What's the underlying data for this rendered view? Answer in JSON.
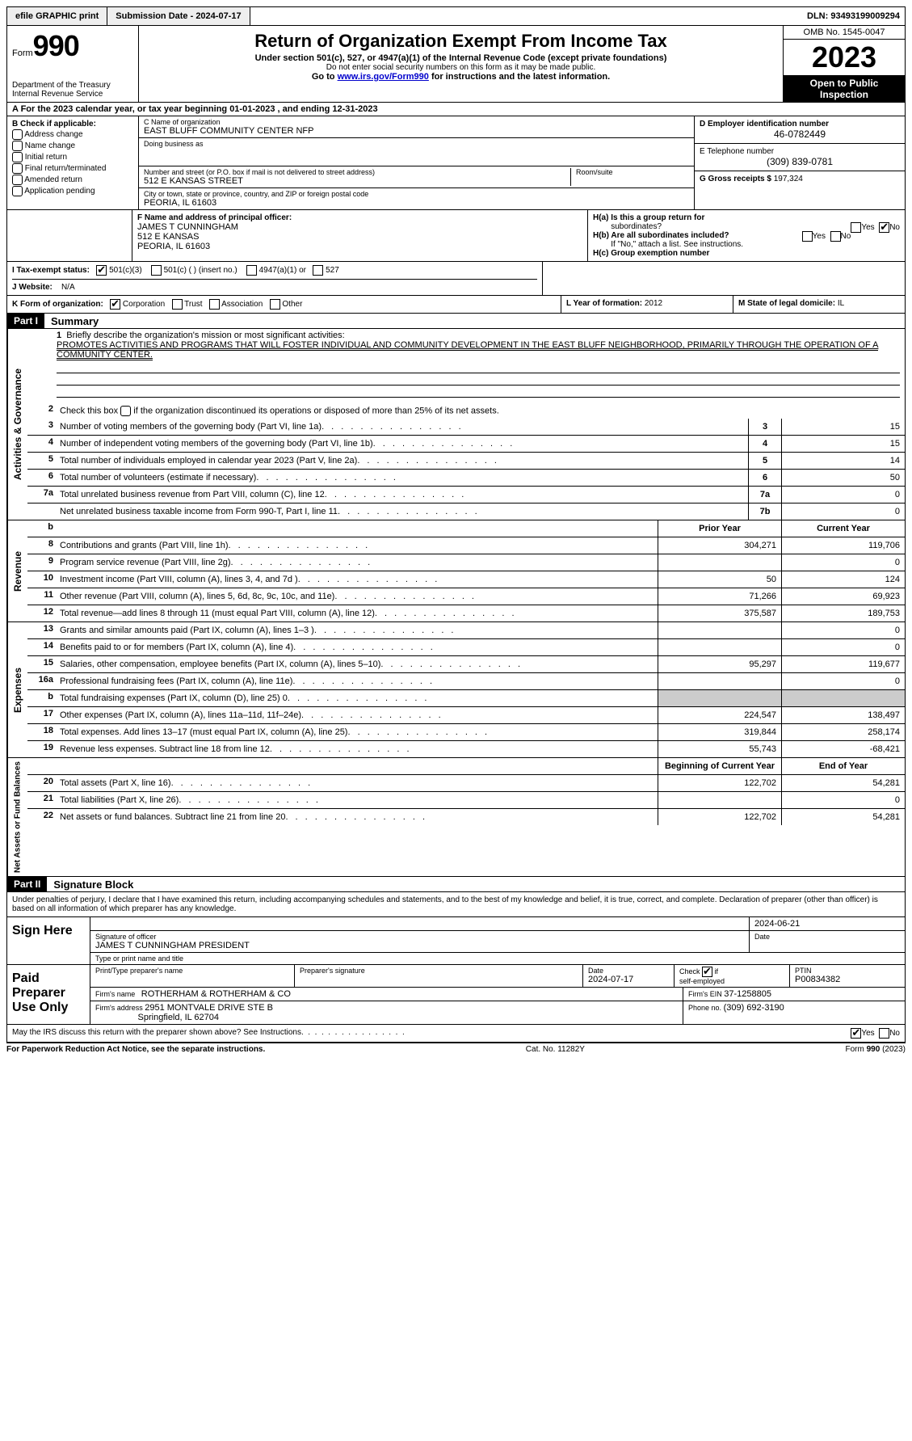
{
  "topbar": {
    "efile": "efile GRAPHIC print",
    "submission": "Submission Date - 2024-07-17",
    "dln": "DLN: 93493199009294"
  },
  "header": {
    "form_label": "Form",
    "form_number": "990",
    "dept": "Department of the Treasury",
    "irs": "Internal Revenue Service",
    "title": "Return of Organization Exempt From Income Tax",
    "sub": "Under section 501(c), 527, or 4947(a)(1) of the Internal Revenue Code (except private foundations)",
    "sub2": "Do not enter social security numbers on this form as it may be made public.",
    "goto_pre": "Go to ",
    "goto_link": "www.irs.gov/Form990",
    "goto_post": " for instructions and the latest information.",
    "omb": "OMB No. 1545-0047",
    "year": "2023",
    "open_public1": "Open to Public",
    "open_public2": "Inspection"
  },
  "row_a": "A  For the 2023 calendar year, or tax year beginning 01-01-2023    , and ending 12-31-2023",
  "section_b": {
    "label": "B Check if applicable:",
    "opts": [
      "Address change",
      "Name change",
      "Initial return",
      "Final return/terminated",
      "Amended return",
      "Application pending"
    ]
  },
  "section_c": {
    "name_label": "C Name of organization",
    "name": "EAST BLUFF COMMUNITY CENTER NFP",
    "dba_label": "Doing business as",
    "dba": "",
    "street_label": "Number and street (or P.O. box if mail is not delivered to street address)",
    "street": "512 E KANSAS STREET",
    "room_label": "Room/suite",
    "city_label": "City or town, state or province, country, and ZIP or foreign postal code",
    "city": "PEORIA, IL  61603"
  },
  "section_d": {
    "ein_label": "D Employer identification number",
    "ein": "46-0782449",
    "phone_label": "E Telephone number",
    "phone": "(309) 839-0781",
    "gross_label": "G Gross receipts $",
    "gross": "197,324"
  },
  "section_f": {
    "label": "F  Name and address of principal officer:",
    "name": "JAMES T CUNNINGHAM",
    "street": "512 E KANSAS",
    "city": "PEORIA, IL  61603"
  },
  "section_h": {
    "ha": "H(a)  Is this a group return for",
    "ha2": "subordinates?",
    "hb": "H(b)  Are all subordinates included?",
    "hb2": "If \"No,\" attach a list. See instructions.",
    "hc": "H(c)  Group exemption number ",
    "yes": "Yes",
    "no": "No"
  },
  "row_i": {
    "label": "I    Tax-exempt status:",
    "o1": "501(c)(3)",
    "o2": "501(c) (  ) (insert no.)",
    "o3": "4947(a)(1) or",
    "o4": "527"
  },
  "row_j": {
    "label": "J    Website: ",
    "val": "N/A"
  },
  "row_k": {
    "label": "K Form of organization:",
    "o1": "Corporation",
    "o2": "Trust",
    "o3": "Association",
    "o4": "Other"
  },
  "row_l": {
    "label": "L Year of formation:",
    "val": "2012"
  },
  "row_m": {
    "label": "M State of legal domicile:",
    "val": "IL"
  },
  "part1": {
    "num": "Part I",
    "title": "Summary"
  },
  "summary": {
    "q1_label": "Briefly describe the organization's mission or most significant activities:",
    "q1_val": "PROMOTES ACTIVITIES AND PROGRAMS THAT WILL FOSTER INDIVIDUAL AND COMMUNITY DEVELOPMENT IN THE EAST BLUFF NEIGHBORHOOD, PRIMARILY THROUGH THE OPERATION OF A COMMUNITY CENTER.",
    "q2": "Check this box         if the organization discontinued its operations or disposed of more than 25% of its net assets.",
    "rows_ag": [
      {
        "n": "3",
        "d": "Number of voting members of the governing body (Part VI, line 1a)",
        "box": "3",
        "v": "15"
      },
      {
        "n": "4",
        "d": "Number of independent voting members of the governing body (Part VI, line 1b)",
        "box": "4",
        "v": "15"
      },
      {
        "n": "5",
        "d": "Total number of individuals employed in calendar year 2023 (Part V, line 2a)",
        "box": "5",
        "v": "14"
      },
      {
        "n": "6",
        "d": "Total number of volunteers (estimate if necessary)",
        "box": "6",
        "v": "50"
      },
      {
        "n": "7a",
        "d": "Total unrelated business revenue from Part VIII, column (C), line 12",
        "box": "7a",
        "v": "0"
      },
      {
        "n": "",
        "d": "Net unrelated business taxable income from Form 990-T, Part I, line 11",
        "box": "7b",
        "v": "0"
      }
    ],
    "hdr_prior": "Prior Year",
    "hdr_current": "Current Year",
    "rows_rev": [
      {
        "n": "8",
        "d": "Contributions and grants (Part VIII, line 1h)",
        "p": "304,271",
        "c": "119,706"
      },
      {
        "n": "9",
        "d": "Program service revenue (Part VIII, line 2g)",
        "p": "",
        "c": "0"
      },
      {
        "n": "10",
        "d": "Investment income (Part VIII, column (A), lines 3, 4, and 7d )",
        "p": "50",
        "c": "124"
      },
      {
        "n": "11",
        "d": "Other revenue (Part VIII, column (A), lines 5, 6d, 8c, 9c, 10c, and 11e)",
        "p": "71,266",
        "c": "69,923"
      },
      {
        "n": "12",
        "d": "Total revenue—add lines 8 through 11 (must equal Part VIII, column (A), line 12)",
        "p": "375,587",
        "c": "189,753"
      }
    ],
    "rows_exp": [
      {
        "n": "13",
        "d": "Grants and similar amounts paid (Part IX, column (A), lines 1–3 )",
        "p": "",
        "c": "0"
      },
      {
        "n": "14",
        "d": "Benefits paid to or for members (Part IX, column (A), line 4)",
        "p": "",
        "c": "0"
      },
      {
        "n": "15",
        "d": "Salaries, other compensation, employee benefits (Part IX, column (A), lines 5–10)",
        "p": "95,297",
        "c": "119,677"
      },
      {
        "n": "16a",
        "d": "Professional fundraising fees (Part IX, column (A), line 11e)",
        "p": "",
        "c": "0"
      },
      {
        "n": "b",
        "d": "Total fundraising expenses (Part IX, column (D), line 25) 0",
        "p": "shade",
        "c": "shade"
      },
      {
        "n": "17",
        "d": "Other expenses (Part IX, column (A), lines 11a–11d, 11f–24e)",
        "p": "224,547",
        "c": "138,497"
      },
      {
        "n": "18",
        "d": "Total expenses. Add lines 13–17 (must equal Part IX, column (A), line 25)",
        "p": "319,844",
        "c": "258,174"
      },
      {
        "n": "19",
        "d": "Revenue less expenses. Subtract line 18 from line 12",
        "p": "55,743",
        "c": "-68,421"
      }
    ],
    "hdr_begin": "Beginning of Current Year",
    "hdr_end": "End of Year",
    "rows_net": [
      {
        "n": "20",
        "d": "Total assets (Part X, line 16)",
        "p": "122,702",
        "c": "54,281"
      },
      {
        "n": "21",
        "d": "Total liabilities (Part X, line 26)",
        "p": "",
        "c": "0"
      },
      {
        "n": "22",
        "d": "Net assets or fund balances. Subtract line 21 from line 20",
        "p": "122,702",
        "c": "54,281"
      }
    ],
    "tab_ag": "Activities & Governance",
    "tab_rev": "Revenue",
    "tab_exp": "Expenses",
    "tab_net": "Net Assets or Fund Balances"
  },
  "part2": {
    "num": "Part II",
    "title": "Signature Block"
  },
  "sig": {
    "penalty": "Under penalties of perjury, I declare that I have examined this return, including accompanying schedules and statements, and to the best of my knowledge and belief, it is true, correct, and complete. Declaration of preparer (other than officer) is based on all information of which preparer has any knowledge.",
    "sign_here": "Sign Here",
    "sig_officer_label": "Signature of officer",
    "officer": "JAMES T CUNNINGHAM  PRESIDENT",
    "officer_type_label": "Type or print name and title",
    "date_label": "Date",
    "date1": "2024-06-21",
    "paid": "Paid Preparer Use Only",
    "prep_name_label": "Print/Type preparer's name",
    "prep_sig_label": "Preparer's signature",
    "prep_date": "2024-07-17",
    "check_if": "Check         if self-employed",
    "ptin_label": "PTIN",
    "ptin": "P00834382",
    "firm_name_label": "Firm's name    ",
    "firm_name": "ROTHERHAM & ROTHERHAM & CO",
    "firm_ein_label": "Firm's EIN  ",
    "firm_ein": "37-1258805",
    "firm_addr_label": "Firm's address ",
    "firm_addr1": "2951 MONTVALE DRIVE STE B",
    "firm_addr2": "Springfield, IL  62704",
    "phone_label": "Phone no.",
    "phone": "(309) 692-3190",
    "may_irs": "May the IRS discuss this return with the preparer shown above? See Instructions.",
    "yes": "Yes",
    "no": "No"
  },
  "footer": {
    "left": "For Paperwork Reduction Act Notice, see the separate instructions.",
    "center": "Cat. No. 11282Y",
    "right": "Form 990 (2023)"
  }
}
